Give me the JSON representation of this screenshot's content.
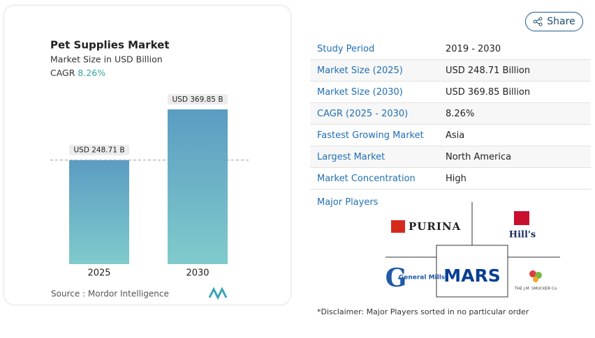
{
  "chart_data": {
    "type": "bar",
    "title": "Pet Supplies Market",
    "subtitle": "Market Size in USD Billion",
    "cagr_label": "CAGR",
    "cagr_value": "8.26%",
    "categories": [
      "2025",
      "2030"
    ],
    "values": [
      248.71,
      369.85
    ],
    "value_labels": [
      "USD 248.71 B",
      "USD 369.85 B"
    ],
    "color": [
      "#5b9cc2",
      "#80cbcc"
    ],
    "source": "Source :  Mordor Intelligence"
  },
  "share": "Share",
  "table": {
    "rows": [
      [
        "Study Period",
        "2019 - 2030"
      ],
      [
        "Market Size (2025)",
        "USD 248.71 Billion"
      ],
      [
        "Market Size (2030)",
        "USD 369.85 Billion"
      ],
      [
        "CAGR (2025 - 2030)",
        "8.26%"
      ],
      [
        "Fastest Growing Market",
        "Asia"
      ],
      [
        "Largest Market",
        "North America"
      ],
      [
        "Market Concentration",
        "High"
      ]
    ]
  },
  "major_players": {
    "title": "Major Players",
    "players": [
      "PURINA",
      "Hill's",
      "General Mills",
      "MARS",
      "THE J.M. SMUCKER Co"
    ]
  },
  "disclaimer": "*Disclaimer: Major Players sorted in no particular order"
}
